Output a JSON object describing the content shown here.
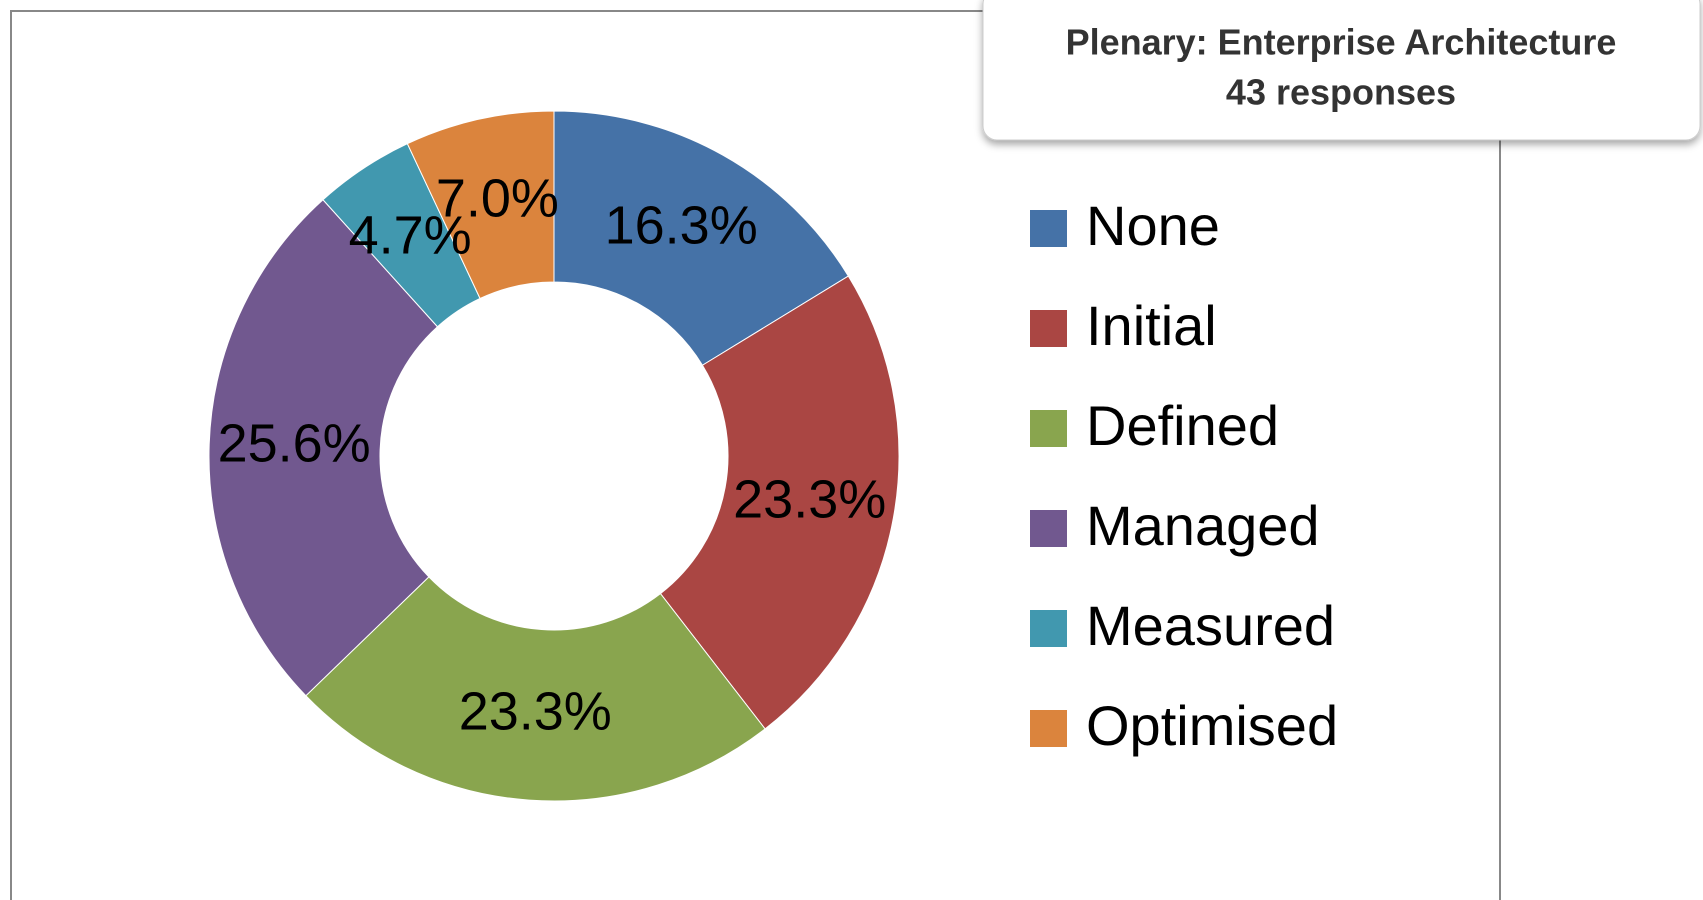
{
  "chart_data": {
    "type": "pie",
    "title": "Plenary: Enterprise Architecture",
    "subtitle": "43 responses",
    "categories": [
      "None",
      "Initial",
      "Defined",
      "Managed",
      "Measured",
      "Optimised"
    ],
    "values": [
      16.3,
      23.3,
      23.3,
      25.6,
      4.7,
      7.0
    ],
    "value_labels": [
      "16.3%",
      "23.3%",
      "23.3%",
      "25.6%",
      "4.7%",
      "7.0%"
    ],
    "colors": [
      "#4572a7",
      "#aa4643",
      "#89a54e",
      "#71588f",
      "#4198af",
      "#db843d"
    ],
    "donut": true,
    "legend": "right"
  }
}
